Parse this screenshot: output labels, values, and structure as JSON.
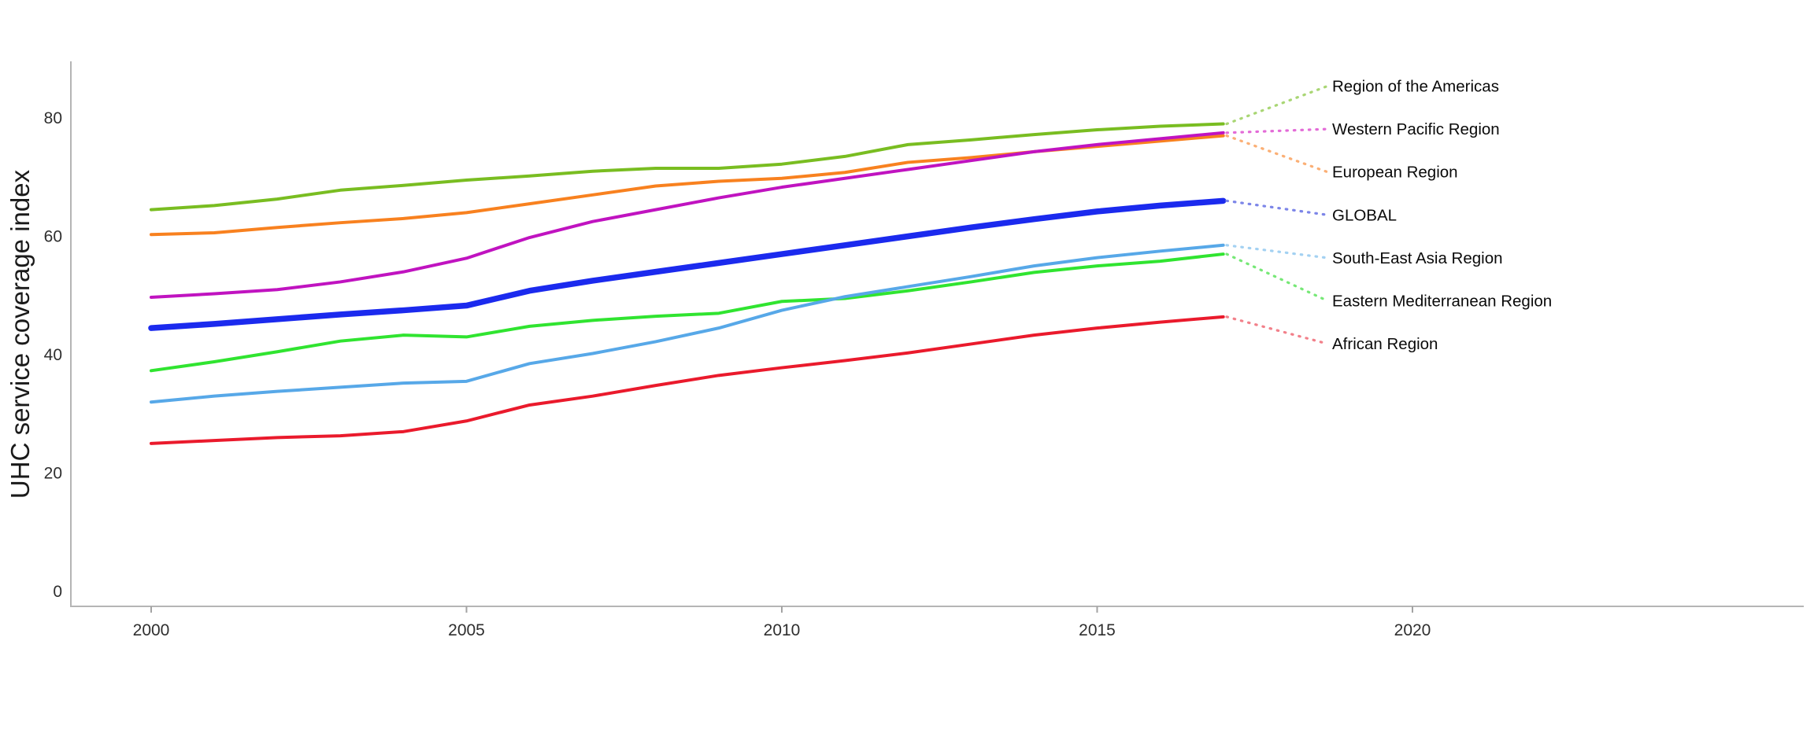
{
  "chart_data": {
    "type": "line",
    "title": "",
    "ylabel": "UHC service coverage index",
    "xlabel": "",
    "x": [
      2000,
      2001,
      2002,
      2003,
      2004,
      2005,
      2006,
      2007,
      2008,
      2009,
      2010,
      2011,
      2012,
      2013,
      2014,
      2015,
      2016,
      2017
    ],
    "x_ticks": [
      2000,
      2005,
      2010,
      2015,
      2020
    ],
    "y_ticks": [
      0,
      20,
      40,
      60,
      80
    ],
    "xlim": [
      1998.7,
      2026.2
    ],
    "ylim": [
      0,
      92
    ],
    "grid": false,
    "legend_position": "right-side labels connected by dotted leader lines",
    "style": {
      "background": "#ffffff",
      "axis_color": "#b5b5b5",
      "tick_color": "#a3a3a3",
      "tick_label_color": "#2e2e2e",
      "legend_text_color": "#0a0a0a",
      "ylabel_color": "#1a1a1a"
    },
    "series": [
      {
        "name": "Region of the Americas",
        "color": "#79BD21",
        "leader_color": "#A9D674",
        "width": 4,
        "values": [
          64.5,
          65.2,
          66.3,
          67.8,
          68.6,
          69.5,
          70.2,
          71.0,
          71.5,
          71.5,
          72.2,
          73.5,
          75.5,
          76.3,
          77.2,
          78.0,
          78.6,
          79.0
        ]
      },
      {
        "name": "Western Pacific Region",
        "color": "#C013C0",
        "leader_color": "#E36BD7",
        "width": 4,
        "values": [
          49.7,
          50.3,
          51.0,
          52.3,
          54.0,
          56.3,
          59.8,
          62.5,
          64.5,
          66.5,
          68.3,
          69.8,
          71.3,
          72.8,
          74.3,
          75.5,
          76.5,
          77.5
        ]
      },
      {
        "name": "European Region",
        "color": "#F8811F",
        "leader_color": "#FBAF75",
        "width": 4,
        "values": [
          60.3,
          60.6,
          61.5,
          62.3,
          63.0,
          64.0,
          65.5,
          67.0,
          68.5,
          69.3,
          69.8,
          70.8,
          72.5,
          73.3,
          74.3,
          75.2,
          76.1,
          77.0
        ]
      },
      {
        "name": "GLOBAL",
        "color": "#1B2AEE",
        "leader_color": "#7C85E8",
        "width": 7.5,
        "values": [
          44.5,
          45.2,
          46.0,
          46.8,
          47.5,
          48.3,
          50.8,
          52.5,
          54.0,
          55.5,
          57.0,
          58.5,
          60.0,
          61.5,
          62.9,
          64.2,
          65.2,
          66.0
        ]
      },
      {
        "name": "South-East Asia Region",
        "color": "#57A8E8",
        "leader_color": "#A3D1F2",
        "width": 4,
        "values": [
          32.0,
          33.0,
          33.8,
          34.5,
          35.2,
          35.5,
          38.5,
          40.2,
          42.2,
          44.5,
          47.5,
          49.8,
          51.5,
          53.2,
          55.0,
          56.4,
          57.5,
          58.5
        ]
      },
      {
        "name": "Eastern Mediterranean Region",
        "color": "#30E430",
        "leader_color": "#76E876",
        "width": 4,
        "values": [
          37.3,
          38.8,
          40.5,
          42.3,
          43.3,
          43.0,
          44.8,
          45.8,
          46.5,
          47.0,
          49.0,
          49.5,
          50.8,
          52.3,
          53.9,
          55.0,
          55.8,
          57.0
        ]
      },
      {
        "name": "African Region",
        "color": "#EA1A2C",
        "leader_color": "#F2808A",
        "width": 4,
        "values": [
          25.0,
          25.5,
          26.0,
          26.3,
          27.0,
          28.8,
          31.5,
          33.0,
          34.8,
          36.5,
          37.8,
          39.0,
          40.3,
          41.8,
          43.3,
          44.5,
          45.5,
          46.4
        ]
      }
    ]
  }
}
